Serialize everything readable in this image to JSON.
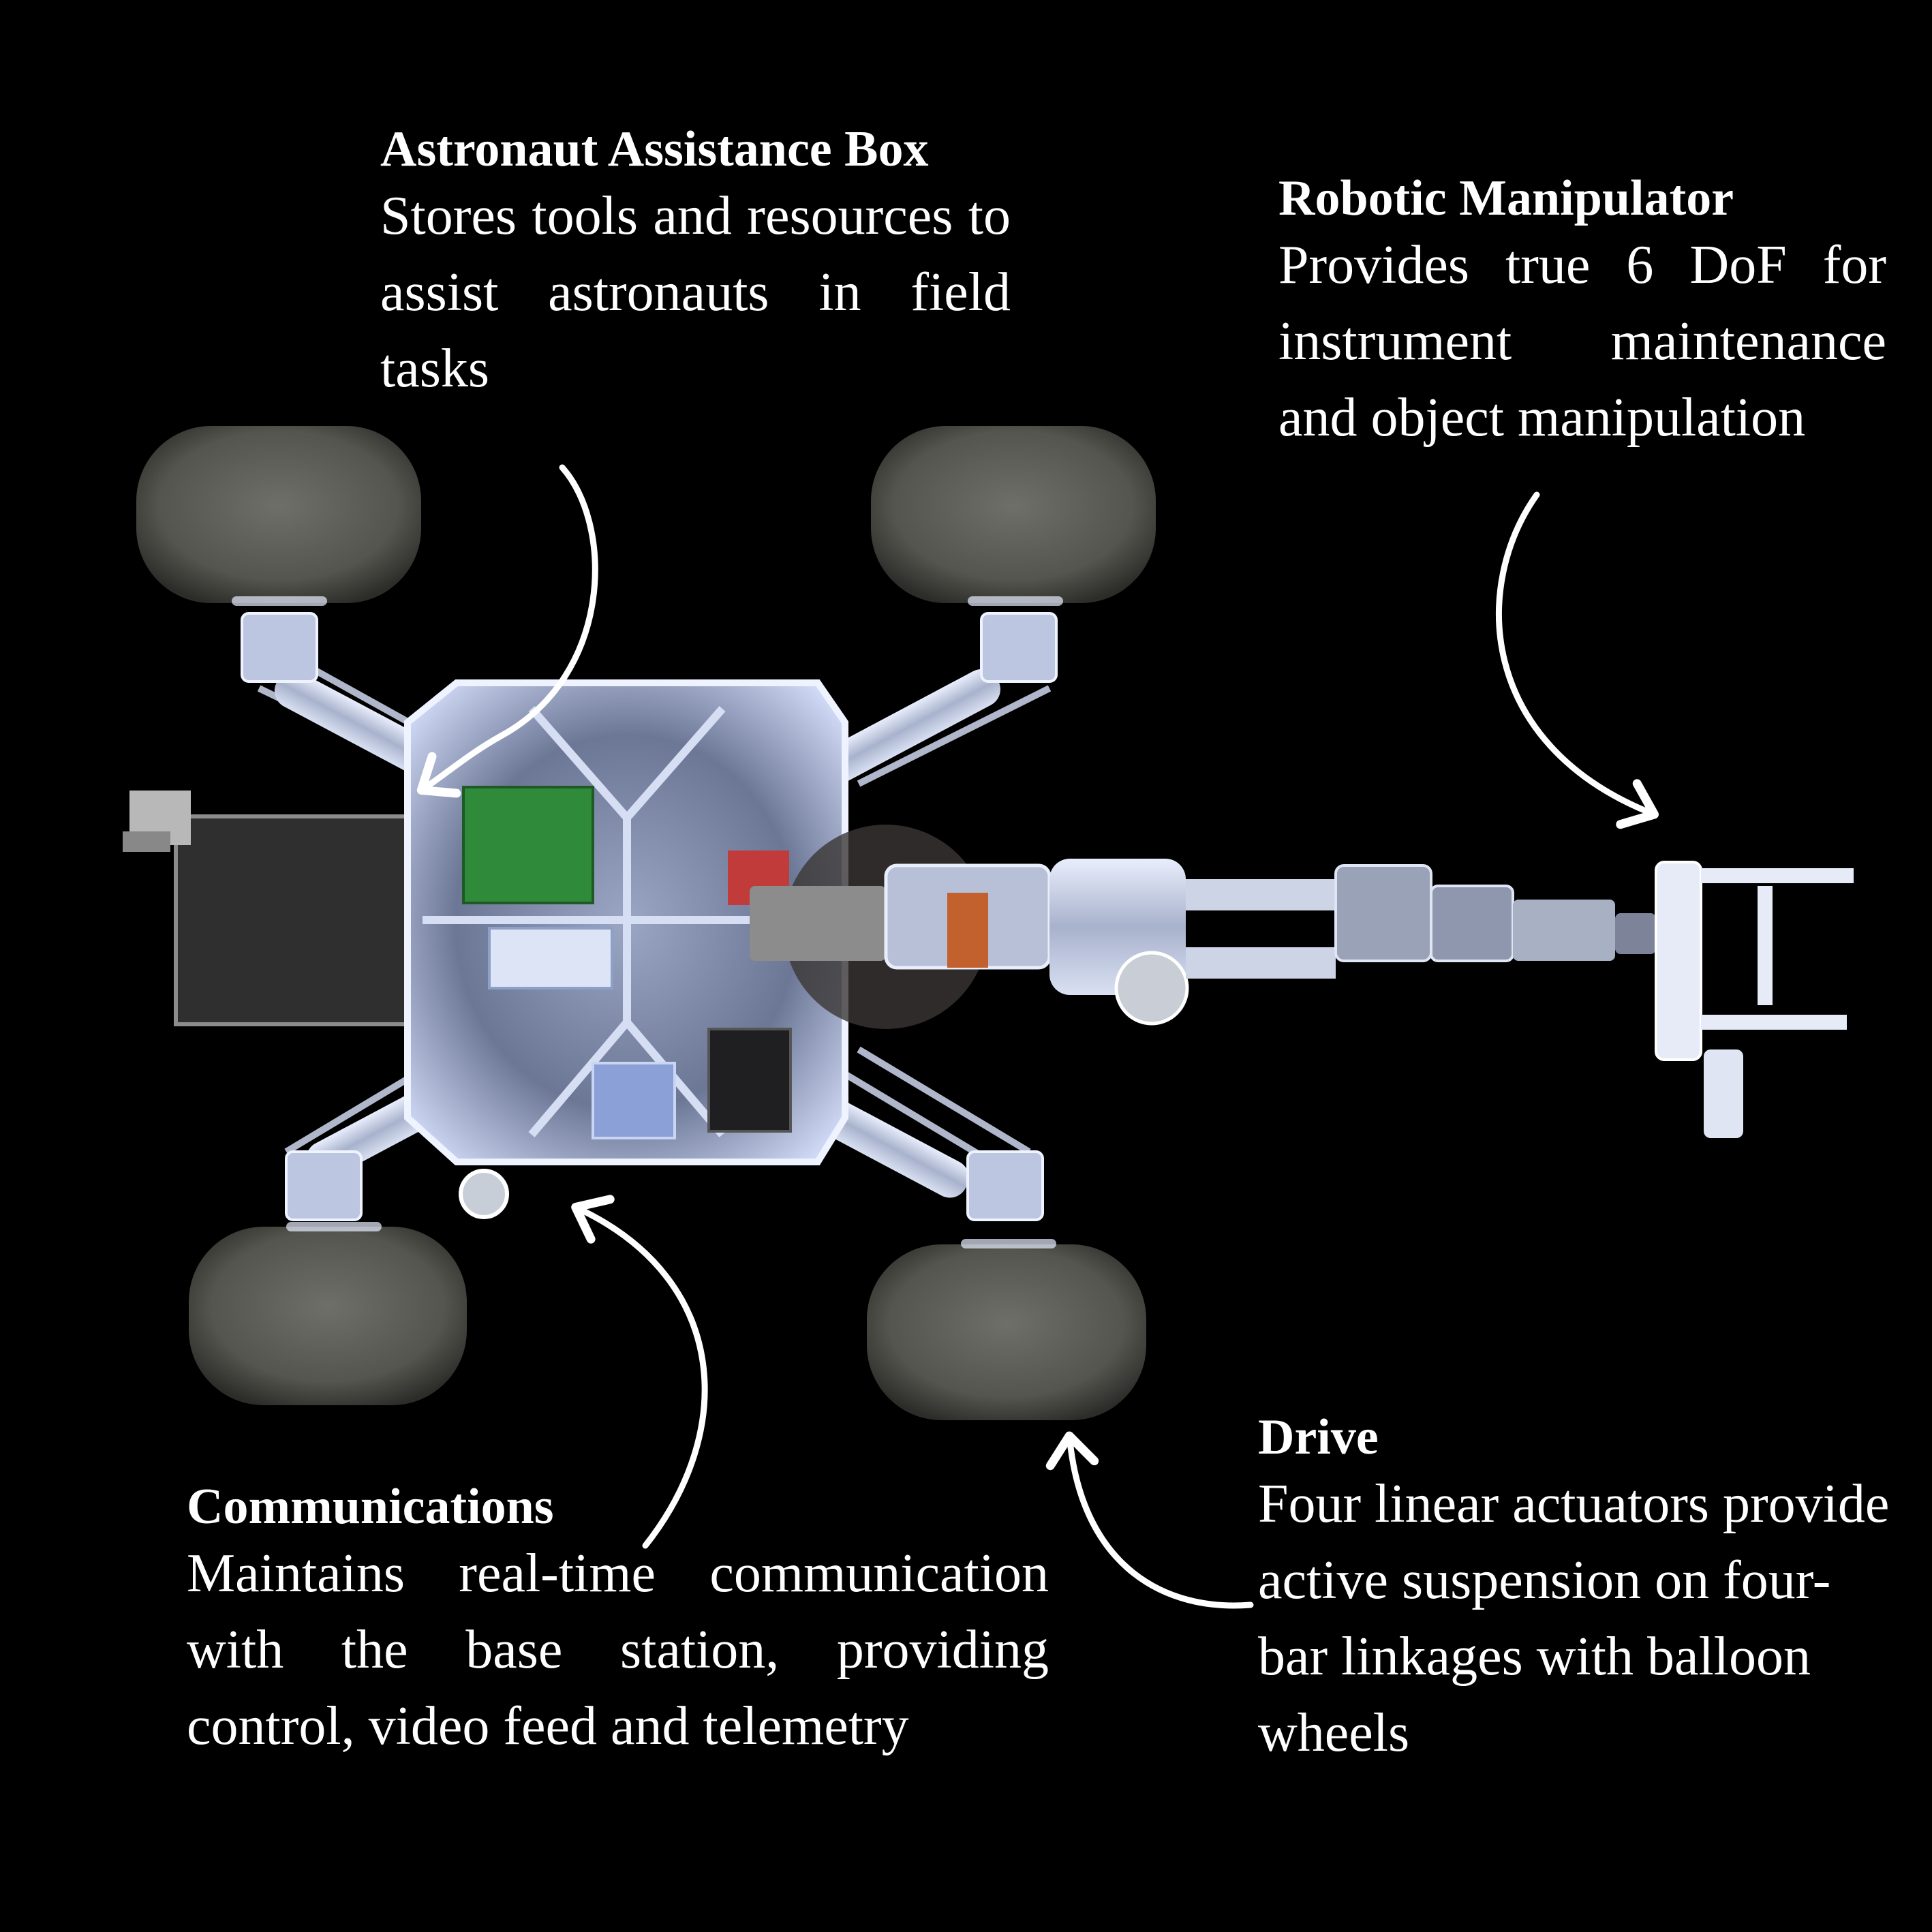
{
  "colors": {
    "background": "#000000",
    "text": "#ffffff",
    "arrow": "#ffffff",
    "tire": "#5a5a56",
    "frame": "#b9c4df",
    "chassis_glow": "#dfe7ff",
    "pcb_green": "#2f8a3a",
    "pcb_red": "#c23b3b"
  },
  "callouts": {
    "astronaut_box": {
      "title": "Astronaut Assistance Box",
      "body": "Stores tools and resources to assist astronauts in field tasks"
    },
    "robotic_manipulator": {
      "title": "Robotic Manipulator",
      "body": "Provides true 6 DoF for instrument maintenance and object manipulation"
    },
    "communications": {
      "title": "Communications",
      "body": "Maintains real-time communication with the base station, providing control, video feed and telemetry"
    },
    "drive": {
      "title": "Drive",
      "body": "Four linear actuators provide active suspension on four-bar linkages with balloon wheels"
    }
  }
}
